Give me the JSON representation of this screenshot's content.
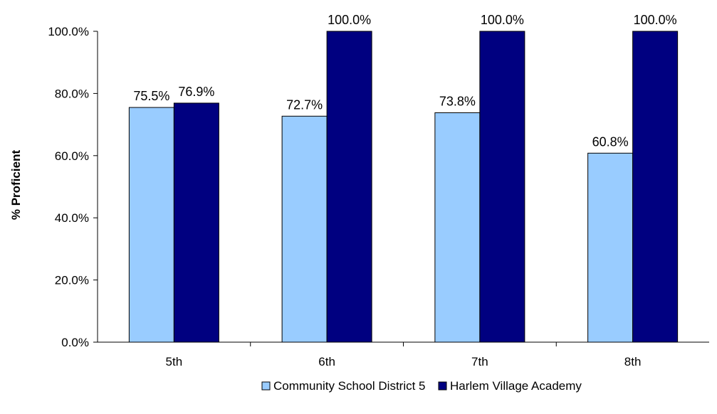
{
  "chart_data": {
    "type": "bar",
    "categories": [
      "5th",
      "6th",
      "7th",
      "8th"
    ],
    "series": [
      {
        "name": "Community School District 5",
        "values": [
          75.5,
          72.7,
          73.8,
          60.8
        ],
        "color": "#99ccff",
        "labels": [
          "75.5%",
          "72.7%",
          "73.8%",
          "60.8%"
        ]
      },
      {
        "name": "Harlem Village Academy",
        "values": [
          76.9,
          100.0,
          100.0,
          100.0
        ],
        "color": "#000080",
        "labels": [
          "76.9%",
          "100.0%",
          "100.0%",
          "100.0%"
        ]
      }
    ],
    "xlabel": "",
    "ylabel": "% Proficient",
    "ylim": [
      0,
      100
    ],
    "yticks": [
      0,
      20,
      40,
      60,
      80,
      100
    ],
    "ytick_labels": [
      "0.0%",
      "20.0%",
      "40.0%",
      "60.0%",
      "80.0%",
      "100.0%"
    ],
    "grid": false,
    "legend": "bottom"
  }
}
